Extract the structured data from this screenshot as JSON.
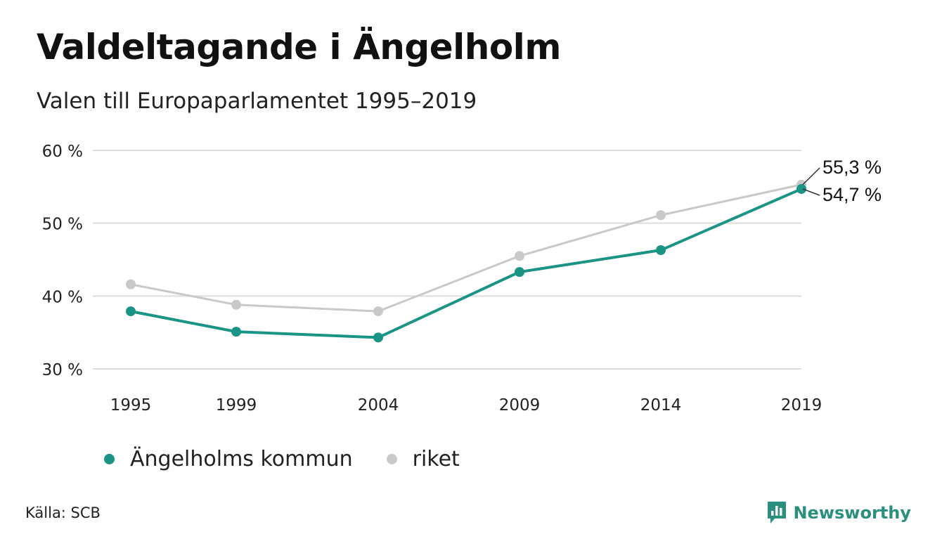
{
  "header": {
    "title": "Valdeltagande i Ängelholm",
    "subtitle": "Valen till Europaparlamentet 1995–2019"
  },
  "footer": {
    "source": "Källa: SCB",
    "brand": "Newsworthy",
    "brand_icon": "bar-chart-speech-bubble-icon",
    "brand_color": "#2a8f7c"
  },
  "legend": [
    {
      "label": "Ängelholms kommun",
      "color": "#1a9485"
    },
    {
      "label": "riket",
      "color": "#c9c9c9"
    }
  ],
  "chart_data": {
    "type": "line",
    "title": "Valdeltagande i Ängelholm",
    "subtitle": "Valen till Europaparlamentet 1995–2019",
    "x": [
      1995,
      1999,
      2004,
      2009,
      2014,
      2019
    ],
    "x_tick_labels": [
      "1995",
      "1999",
      "2004",
      "2009",
      "2014",
      "2019"
    ],
    "ylim": [
      30,
      60
    ],
    "y_ticks": [
      30,
      40,
      50,
      60
    ],
    "y_tick_labels": [
      "30 %",
      "40 %",
      "50 %",
      "60 %"
    ],
    "grid": true,
    "legend_position": "bottom-left",
    "series": [
      {
        "name": "riket",
        "color": "#c9c9c9",
        "values": [
          41.6,
          38.8,
          37.9,
          45.5,
          51.1,
          55.3
        ],
        "end_label": "55,3 %"
      },
      {
        "name": "Ängelholms kommun",
        "color": "#1a9485",
        "values": [
          37.9,
          35.1,
          34.3,
          43.3,
          46.3,
          54.7
        ],
        "end_label": "54,7 %"
      }
    ]
  }
}
